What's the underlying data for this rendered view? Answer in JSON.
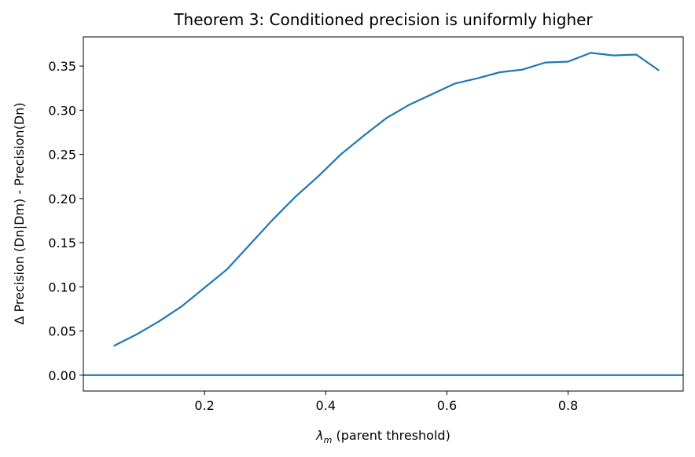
{
  "chart_data": {
    "type": "line",
    "title": "Theorem 3: Conditioned precision is uniformly higher",
    "xlabel_symbol": "λ",
    "xlabel_subscript": "m",
    "xlabel_rest": " (parent threshold)",
    "ylabel": "Δ Precision (Dn|Dm) - Precision(Dn)",
    "xlim": [
      0.0,
      0.99
    ],
    "ylim": [
      -0.018,
      0.383
    ],
    "xticks": [
      0.2,
      0.4,
      0.6,
      0.8
    ],
    "xtick_labels": [
      "0.2",
      "0.4",
      "0.6",
      "0.8"
    ],
    "yticks": [
      0.0,
      0.05,
      0.1,
      0.15,
      0.2,
      0.25,
      0.3,
      0.35
    ],
    "ytick_labels": [
      "0.00",
      "0.05",
      "0.10",
      "0.15",
      "0.20",
      "0.25",
      "0.30",
      "0.35"
    ],
    "grid": false,
    "series": [
      {
        "color": "#1f77b4",
        "x": [
          0.05,
          0.0875,
          0.125,
          0.1625,
          0.2,
          0.2375,
          0.275,
          0.3125,
          0.35,
          0.3875,
          0.425,
          0.4625,
          0.5,
          0.5375,
          0.575,
          0.6125,
          0.65,
          0.6875,
          0.725,
          0.7625,
          0.8,
          0.8375,
          0.875,
          0.9125,
          0.95
        ],
        "y": [
          0.033,
          0.046,
          0.061,
          0.078,
          0.099,
          0.12,
          0.148,
          0.176,
          0.202,
          0.225,
          0.25,
          0.271,
          0.291,
          0.306,
          0.318,
          0.33,
          0.336,
          0.343,
          0.346,
          0.354,
          0.355,
          0.365,
          0.362,
          0.363,
          0.345
        ]
      }
    ],
    "reference_line": {
      "y": 0.0,
      "color": "#1f77b4"
    }
  }
}
